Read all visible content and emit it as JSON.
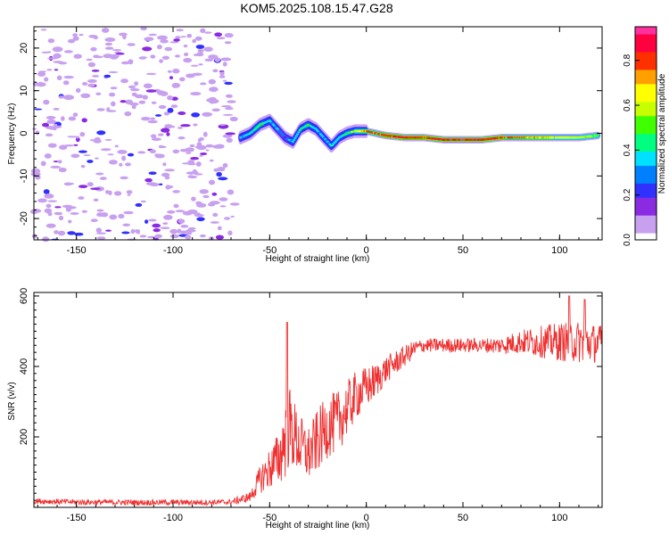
{
  "figure": {
    "title": "KOM5.2025.108.15.47.G28"
  },
  "chart_data": [
    {
      "type": "heatmap",
      "xlabel": "Height of straight line (km)",
      "ylabel": "Frequency (Hz)",
      "xlim": [
        -172,
        122
      ],
      "ylim": [
        -25,
        25
      ],
      "x_ticks": [
        -150,
        -100,
        -50,
        0,
        50,
        100
      ],
      "y_ticks": [
        -20,
        -10,
        0,
        10,
        20
      ],
      "grid": false,
      "colorbar": {
        "label": "Normalized spectral amplitude",
        "range": [
          0,
          0.95
        ],
        "ticks": [
          "0.0",
          "0.2",
          "0.4",
          "0.6",
          "0.8"
        ],
        "tick_values": [
          0,
          0.2,
          0.4,
          0.6,
          0.8
        ],
        "colormap": [
          "#ffffff",
          "#c8a0f0",
          "#8a2be2",
          "#3030ff",
          "#0080ff",
          "#00e0ff",
          "#00ff80",
          "#40ff00",
          "#c8ff00",
          "#ffff00",
          "#ffa000",
          "#ff3000",
          "#ff0040",
          "#ff30a0"
        ]
      },
      "noise_region_x": [
        -172,
        -68
      ],
      "ridge": {
        "x": [
          -65,
          -60,
          -55,
          -50,
          -46,
          -42,
          -38,
          -34,
          -30,
          -26,
          -22,
          -18,
          -14,
          -10,
          -6,
          -2,
          0,
          10,
          20,
          30,
          40,
          50,
          60,
          70,
          80,
          90,
          100,
          110,
          120
        ],
        "frequency": [
          -1,
          0,
          2,
          3,
          1,
          -1,
          -2,
          1,
          2,
          1,
          -1,
          -3,
          -1,
          0,
          0.5,
          0.5,
          0.5,
          -0.5,
          -1,
          -1,
          -1.5,
          -1.5,
          -1.5,
          -1,
          -1,
          -1,
          -1,
          -1,
          -0.5
        ],
        "amplitude": [
          0.3,
          0.4,
          0.45,
          0.4,
          0.3,
          0.25,
          0.35,
          0.4,
          0.45,
          0.35,
          0.3,
          0.4,
          0.35,
          0.45,
          0.55,
          0.7,
          0.75,
          0.8,
          0.85,
          0.8,
          0.85,
          0.9,
          0.85,
          0.8,
          0.75,
          0.7,
          0.65,
          0.6,
          0.55
        ]
      }
    },
    {
      "type": "line",
      "xlabel": "Height of straight line (km)",
      "ylabel": "SNR (v/v)",
      "xlim": [
        -172,
        122
      ],
      "ylim": [
        0,
        610
      ],
      "x_ticks": [
        -150,
        -100,
        -50,
        0,
        50,
        100
      ],
      "y_ticks": [
        200,
        400,
        600
      ],
      "grid": false,
      "color": "#ef3030",
      "series": [
        {
          "x": [
            -172,
            -150,
            -120,
            -90,
            -70,
            -60,
            -55,
            -50,
            -45,
            -42,
            -40,
            -35,
            -30,
            -25,
            -20,
            -15,
            -10,
            -5,
            0,
            5,
            10,
            15,
            20,
            25,
            30,
            40,
            50,
            60,
            70,
            80,
            90,
            100,
            110,
            120
          ],
          "y": [
            18,
            15,
            14,
            14,
            15,
            30,
            80,
            110,
            140,
            200,
            230,
            180,
            150,
            190,
            230,
            240,
            280,
            320,
            340,
            360,
            390,
            410,
            430,
            450,
            460,
            460,
            460,
            460,
            460,
            470,
            470,
            470,
            470,
            465
          ],
          "band": [
            8,
            8,
            8,
            8,
            8,
            15,
            40,
            60,
            80,
            120,
            120,
            90,
            80,
            90,
            90,
            90,
            80,
            70,
            60,
            50,
            40,
            35,
            30,
            25,
            20,
            20,
            20,
            20,
            25,
            35,
            45,
            55,
            60,
            55
          ]
        }
      ],
      "spikes": [
        {
          "x": -41,
          "y": 525
        },
        {
          "x": 105,
          "y": 600
        },
        {
          "x": 113,
          "y": 590
        }
      ]
    }
  ]
}
